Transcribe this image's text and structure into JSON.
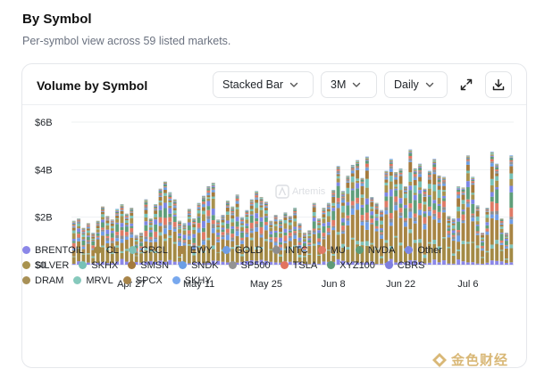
{
  "section": {
    "title": "By Symbol",
    "subtitle": "Per-symbol view across 59 listed markets."
  },
  "card": {
    "title": "Volume by Symbol",
    "chart_type_select": "Stacked Bar",
    "range_select": "3M",
    "interval_select": "Daily",
    "expand_icon": "expand-icon",
    "download_icon": "download-icon"
  },
  "watermark": {
    "artemis": "Artemis",
    "site": "金色财经"
  },
  "legend": {
    "rows": [
      [
        {
          "name": "BRENTOIL",
          "color": "#8b87e8"
        },
        {
          "name": "CL",
          "color": "#a38a45"
        },
        {
          "name": "CRCL",
          "color": "#7fc2b8"
        },
        {
          "name": "EWY",
          "color": "#a88544"
        },
        {
          "name": "GOLD",
          "color": "#6f9de6"
        },
        {
          "name": "INTC",
          "color": "#8d8d8d"
        },
        {
          "name": "MU",
          "color": "#e07a66"
        },
        {
          "name": "NVDA",
          "color": "#5f9e7a"
        },
        {
          "name": "Other",
          "color": "#7c87e6"
        }
      ],
      [
        {
          "name": "SILVER",
          "color": "#a8924e"
        },
        {
          "name": "SKHX",
          "color": "#77c1b7"
        },
        {
          "name": "SMSN",
          "color": "#a47a3d"
        },
        {
          "name": "SNDK",
          "color": "#6b9ee6"
        },
        {
          "name": "SP500",
          "color": "#939393"
        },
        {
          "name": "TSLA",
          "color": "#e2735e"
        },
        {
          "name": "XYZ100",
          "color": "#5e9a78"
        },
        {
          "name": "CBRS",
          "color": "#7f7fdf"
        }
      ],
      [
        {
          "name": "DRAM",
          "color": "#a89056"
        },
        {
          "name": "MRVL",
          "color": "#86c9bc"
        },
        {
          "name": "SPCX",
          "color": "#a8854a"
        },
        {
          "name": "SKHY",
          "color": "#78a8ee"
        }
      ]
    ]
  },
  "chart_data": {
    "type": "bar",
    "stacked": true,
    "title": "Volume by Symbol",
    "y_tick_labels": [
      "$0",
      "$2B",
      "$4B",
      "$6B"
    ],
    "x_tick_labels": [
      "Apr 27",
      "May 11",
      "May 25",
      "Jun 8",
      "Jun 22",
      "Jul 6"
    ],
    "x_tick_positions": [
      12,
      26,
      40,
      54,
      68,
      82
    ],
    "ylim": [
      0,
      6
    ],
    "units": "USD billions",
    "grid": "horizontal",
    "legend_position": "bottom",
    "categories_count": 92,
    "totals": [
      1.85,
      1.95,
      1.55,
      1.75,
      1.35,
      1.85,
      2.45,
      2.05,
      1.9,
      2.35,
      2.55,
      2.15,
      2.4,
      1.25,
      1.35,
      2.75,
      1.95,
      2.55,
      3.2,
      3.5,
      3.05,
      2.75,
      1.85,
      1.75,
      2.35,
      1.95,
      2.6,
      2.9,
      3.3,
      3.45,
      1.9,
      2.1,
      2.7,
      2.45,
      2.95,
      2.0,
      2.3,
      2.75,
      3.1,
      2.85,
      2.65,
      1.85,
      2.1,
      1.9,
      2.2,
      2.05,
      2.4,
      1.75,
      1.35,
      1.45,
      2.6,
      1.95,
      2.4,
      2.6,
      3.15,
      4.15,
      3.1,
      3.75,
      4.2,
      4.4,
      3.65,
      4.55,
      2.85,
      2.6,
      2.3,
      3.95,
      4.45,
      3.9,
      4.05,
      3.3,
      4.85,
      4.05,
      4.25,
      3.2,
      3.95,
      4.45,
      3.75,
      3.7,
      2.05,
      1.95,
      3.3,
      3.25,
      4.6,
      3.7,
      2.5,
      1.35,
      2.4,
      4.75,
      4.25,
      1.95,
      1.35,
      4.6
    ],
    "series": [
      {
        "name": "BRENTOIL",
        "share": 0.05
      },
      {
        "name": "CL",
        "share": 0.22
      },
      {
        "name": "CRCL",
        "share": 0.03
      },
      {
        "name": "EWY",
        "share": 0.16
      },
      {
        "name": "GOLD",
        "share": 0.05
      },
      {
        "name": "INTC",
        "share": 0.03
      },
      {
        "name": "MU",
        "share": 0.06
      },
      {
        "name": "NVDA",
        "share": 0.08
      },
      {
        "name": "Other",
        "share": 0.05
      },
      {
        "name": "SILVER",
        "share": 0.07
      },
      {
        "name": "SKHX",
        "share": 0.04
      },
      {
        "name": "SMSN",
        "share": 0.04
      },
      {
        "name": "SNDK",
        "share": 0.02
      },
      {
        "name": "SP500",
        "share": 0.02
      },
      {
        "name": "TSLA",
        "share": 0.02
      },
      {
        "name": "XYZ100",
        "share": 0.02
      },
      {
        "name": "CBRS",
        "share": 0.01
      },
      {
        "name": "DRAM",
        "share": 0.01
      },
      {
        "name": "MRVL",
        "share": 0.01
      },
      {
        "name": "SPCX",
        "share": 0.005
      },
      {
        "name": "SKHY",
        "share": 0.005
      }
    ]
  }
}
